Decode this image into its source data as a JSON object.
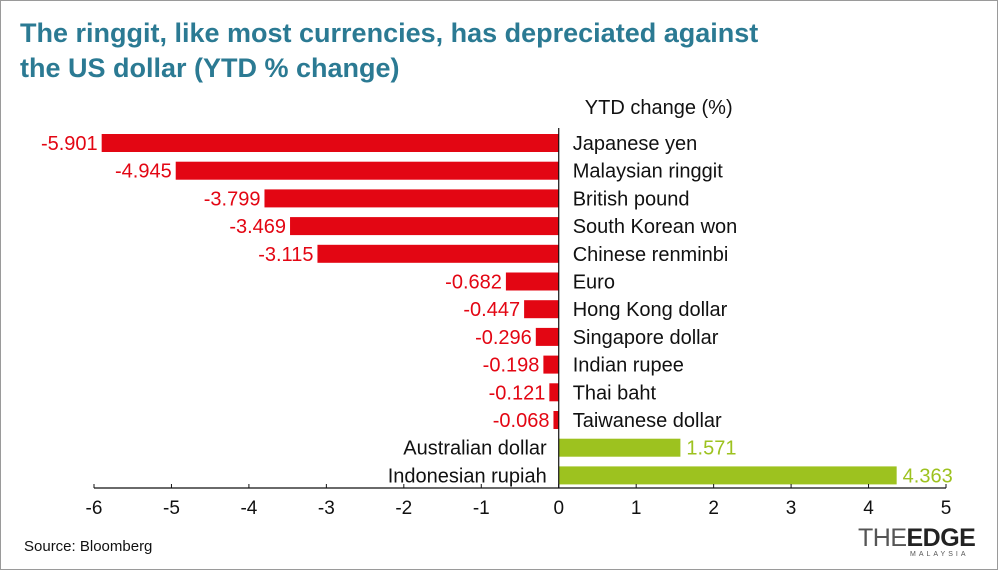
{
  "title": "The ringgit, like most currencies, has depreciated against\nthe US dollar (YTD % change)",
  "source": "Source: Bloomberg",
  "logo": {
    "part1": "THE",
    "part2": "EDGE",
    "sub": "MALAYSIA"
  },
  "colors": {
    "negative": "#e30613",
    "positive": "#9dc21f",
    "title": "#2b7a93"
  },
  "chart_data": {
    "type": "bar",
    "orientation": "horizontal",
    "axis_title": "YTD change (%)",
    "categories": [
      "Japanese yen",
      "Malaysian ringgit",
      "British pound",
      "South Korean won",
      "Chinese renminbi",
      "Euro",
      "Hong Kong dollar",
      "Singapore dollar",
      "Indian rupee",
      "Thai baht",
      "Taiwanese dollar",
      "Australian dollar",
      "Indonesian rupiah"
    ],
    "values": [
      -5.901,
      -4.945,
      -3.799,
      -3.469,
      -3.115,
      -0.682,
      -0.447,
      -0.296,
      -0.198,
      -0.121,
      -0.068,
      1.571,
      4.363
    ],
    "value_labels": [
      "-5.901",
      "-4.945",
      "-3.799",
      "-3.469",
      "-3.115",
      "-0.682",
      "-0.447",
      "-0.296",
      "-0.198",
      "-0.121",
      "-0.068",
      "1.571",
      "4.363"
    ],
    "xlim": [
      -6,
      5
    ],
    "xticks": [
      "-6",
      "-5",
      "-4",
      "-3",
      "-2",
      "-1",
      "0",
      "1",
      "2",
      "3",
      "4",
      "5"
    ],
    "grid": false
  }
}
